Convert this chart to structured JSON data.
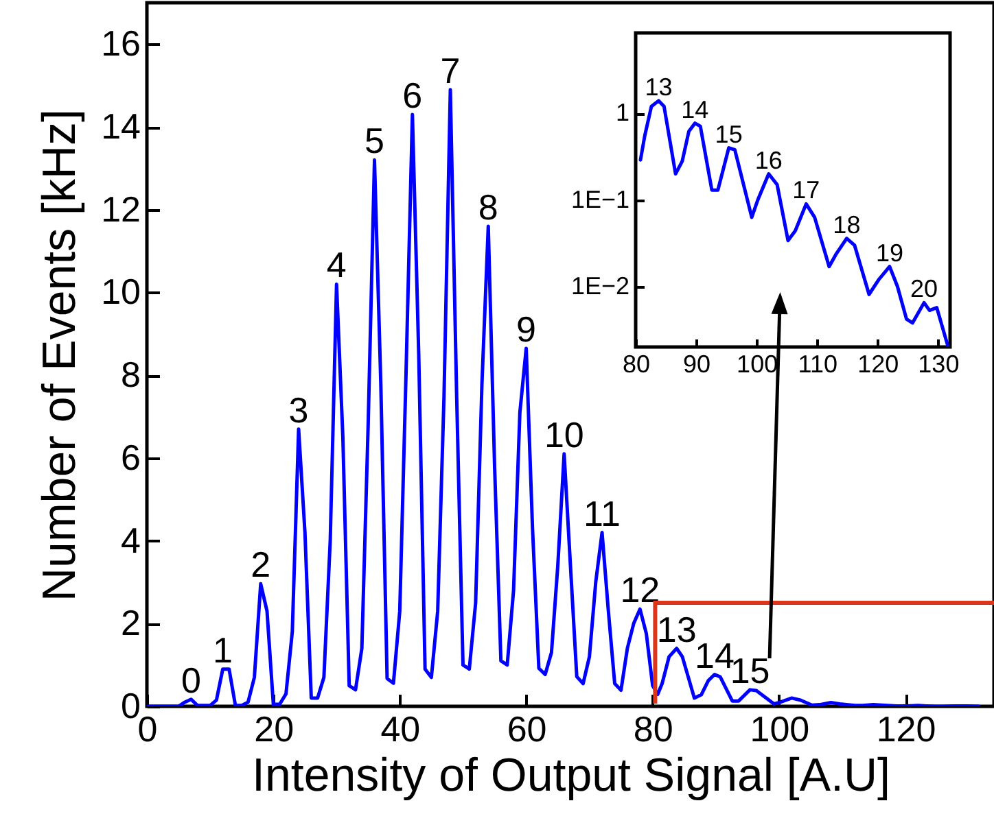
{
  "chart_data": [
    {
      "type": "line",
      "xlabel": "Intensity of Output Signal [A.U]",
      "ylabel": "Number of Events [kHz]",
      "x": [
        0,
        1,
        2,
        3,
        4,
        5,
        6,
        7,
        8,
        9,
        10,
        11,
        12,
        13,
        14,
        15,
        16,
        17,
        18,
        19,
        20,
        21,
        22,
        23,
        24,
        25,
        26,
        27,
        28,
        29,
        30,
        31,
        32,
        33,
        34,
        35,
        36,
        37,
        38,
        39,
        40,
        41,
        42,
        43,
        44,
        45,
        46,
        47,
        48,
        49,
        50,
        51,
        52,
        53,
        54,
        55,
        56,
        57,
        58,
        59,
        60,
        61,
        62,
        63,
        64,
        65,
        66,
        67,
        68,
        69,
        70,
        71,
        72,
        73,
        74,
        75,
        76,
        77,
        78,
        79,
        80,
        80.8,
        81.5,
        82.6,
        83.8,
        84.7,
        86.6,
        87.7,
        88.8,
        89.8,
        90.7,
        92.6,
        93.6,
        95.4,
        96.4,
        99.2,
        100.2,
        102,
        103.4,
        105.2,
        106.4,
        108.2,
        109.6,
        112,
        113.2,
        114.9,
        116.2,
        118.6,
        120.2,
        122,
        123.3,
        124.8,
        125.8,
        127.7,
        128.6,
        129.8,
        131.6
      ],
      "series": [
        {
          "color": "#0000ff",
          "values": [
            0,
            0,
            0,
            0,
            0,
            0,
            0.1,
            0.17,
            0.02,
            0.02,
            0.02,
            0.15,
            0.9,
            0.9,
            0.02,
            0.02,
            0.1,
            0.7,
            2.96,
            2.3,
            0.05,
            0.05,
            0.3,
            1.8,
            6.7,
            4.2,
            0.2,
            0.2,
            0.7,
            4.0,
            10.2,
            6.5,
            0.5,
            0.4,
            1.4,
            6.8,
            13.2,
            7.8,
            0.67,
            0.56,
            2.3,
            8.1,
            14.3,
            8.5,
            0.9,
            0.7,
            2.3,
            7.5,
            14.9,
            7.5,
            1.0,
            0.9,
            2.5,
            7.8,
            11.6,
            5.8,
            1.1,
            1.0,
            2.8,
            7.1,
            8.65,
            4.3,
            0.92,
            0.77,
            1.3,
            3.4,
            6.1,
            3.4,
            0.72,
            0.55,
            1.2,
            3.0,
            4.2,
            2.3,
            0.55,
            0.39,
            1.4,
            2.0,
            2.35,
            1.76,
            0.5,
            0.29,
            0.55,
            1.2,
            1.4,
            1.2,
            0.2,
            0.28,
            0.62,
            0.77,
            0.71,
            0.13,
            0.13,
            0.4,
            0.38,
            0.06,
            0.1,
            0.2,
            0.15,
            0.03,
            0.04,
            0.09,
            0.06,
            0.02,
            0.02,
            0.04,
            0.03,
            0.01,
            0.01,
            0.02,
            0.01,
            0,
            0,
            0.01,
            0.01,
            0.01,
            0
          ]
        }
      ],
      "xlim": [
        0,
        134
      ],
      "ylim": [
        0,
        17
      ],
      "xticks": [
        0,
        20,
        40,
        60,
        80,
        100,
        120
      ],
      "yticks": [
        0,
        2,
        4,
        6,
        8,
        10,
        12,
        14,
        16
      ],
      "annotations": [
        {
          "text": "0",
          "x": 7,
          "y": 0.17
        },
        {
          "text": "1",
          "x": 12,
          "y": 0.9
        },
        {
          "text": "2",
          "x": 18,
          "y": 2.96
        },
        {
          "text": "3",
          "x": 24,
          "y": 6.7
        },
        {
          "text": "4",
          "x": 30,
          "y": 10.2
        },
        {
          "text": "5",
          "x": 36,
          "y": 13.2
        },
        {
          "text": "6",
          "x": 42,
          "y": 14.3
        },
        {
          "text": "7",
          "x": 48,
          "y": 14.9
        },
        {
          "text": "8",
          "x": 54,
          "y": 11.6
        },
        {
          "text": "9",
          "x": 60,
          "y": 8.65
        },
        {
          "text": "10",
          "x": 66,
          "y": 6.1
        },
        {
          "text": "11",
          "x": 72,
          "y": 4.2
        },
        {
          "text": "12",
          "x": 78,
          "y": 2.35
        },
        {
          "text": "13",
          "x": 83.8,
          "y": 1.4
        },
        {
          "text": "14",
          "x": 89.8,
          "y": 0.77
        },
        {
          "text": "15",
          "x": 95.4,
          "y": 0.4
        }
      ]
    },
    {
      "type": "line",
      "log": "y",
      "x": [
        80.8,
        81.5,
        82.6,
        83.8,
        84.7,
        86.6,
        87.7,
        88.8,
        89.8,
        90.7,
        92.6,
        93.6,
        95.4,
        96.4,
        99.2,
        100.2,
        102,
        103.4,
        105.2,
        106.4,
        108.2,
        109.6,
        112,
        113.2,
        114.9,
        116.2,
        118.6,
        120.2,
        122,
        123.3,
        124.8,
        125.8,
        127.7,
        128.6,
        129.8,
        131.6
      ],
      "series": [
        {
          "color": "#0000ff",
          "values": [
            0.29,
            0.55,
            1.2,
            1.4,
            1.2,
            0.2,
            0.28,
            0.62,
            0.77,
            0.71,
            0.13,
            0.13,
            0.4,
            0.38,
            0.063,
            0.1,
            0.2,
            0.15,
            0.034,
            0.044,
            0.09,
            0.063,
            0.017,
            0.024,
            0.036,
            0.03,
            0.0081,
            0.012,
            0.017,
            0.01,
            0.0042,
            0.0038,
            0.0065,
            0.0053,
            0.0057,
            0.0021
          ]
        }
      ],
      "xlim": [
        80,
        132
      ],
      "ylim": [
        0.002,
        8.5
      ],
      "xticks": [
        80,
        90,
        100,
        110,
        120,
        130
      ],
      "yticks": [
        {
          "value": 0.01,
          "label": "1E−2"
        },
        {
          "value": 0.1,
          "label": "1E−1"
        },
        1
      ],
      "annotations": [
        {
          "text": "13",
          "x": 83.8,
          "y": 1.4
        },
        {
          "text": "14",
          "x": 89.8,
          "y": 0.77
        },
        {
          "text": "15",
          "x": 95.4,
          "y": 0.4
        },
        {
          "text": "16",
          "x": 102,
          "y": 0.2
        },
        {
          "text": "17",
          "x": 108.2,
          "y": 0.09
        },
        {
          "text": "18",
          "x": 114.9,
          "y": 0.036
        },
        {
          "text": "19",
          "x": 122,
          "y": 0.017
        },
        {
          "text": "20",
          "x": 127.7,
          "y": 0.0065
        }
      ]
    }
  ]
}
